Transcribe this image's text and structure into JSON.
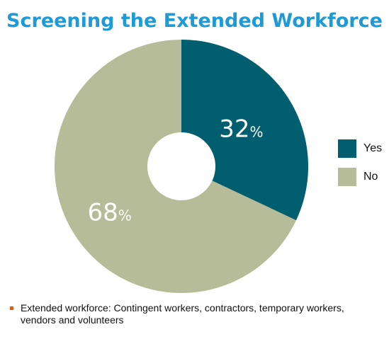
{
  "chart_data": {
    "type": "pie",
    "style": "donut",
    "title": "Screening the Extended Workforce",
    "categories": [
      "Yes",
      "No"
    ],
    "values": [
      32,
      68
    ],
    "value_labels": [
      "32",
      "68"
    ],
    "unit": "%",
    "colors": [
      "#005e6e",
      "#b6bb98"
    ],
    "legend": "right",
    "legend_entries": [
      "Yes",
      "No"
    ]
  },
  "footnote": {
    "text": "Extended workforce: Contingent workers, contractors, temporary workers, vendors and volunteers",
    "bullet_color": "#e35d10"
  },
  "colors": {
    "title": "#1e9ad6"
  }
}
